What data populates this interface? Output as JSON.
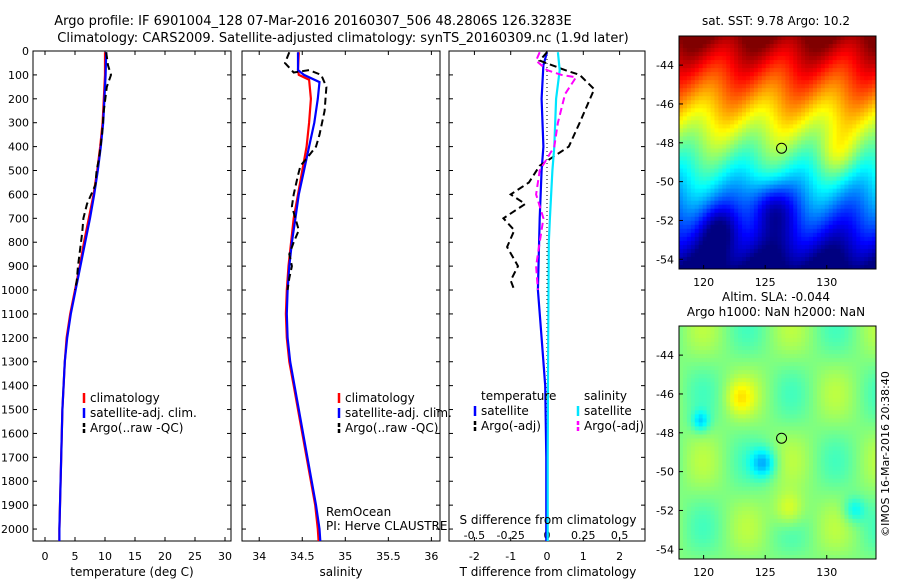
{
  "title": {
    "line1": "Argo profile: IF 6901004_128 07-Mar-2016 20160307_506 48.2806S 126.3283E",
    "line2": "Climatology: CARS2009. Satellite-adjusted climatology: synTS_20160309.nc (1.9d later)"
  },
  "colors": {
    "climatology": "#ff0000",
    "satellite": "#0000ff",
    "argo": "#000000",
    "salinity_satellite": "#00e5ff",
    "salinity_argo": "#ff00ff"
  },
  "credit": {
    "remocean": "RemOcean",
    "pi": "PI: Herve CLAUSTRE",
    "imos": "©IMOS 16-Mar-2016 20:38:40"
  },
  "chart_data": [
    {
      "id": "temperature",
      "type": "line",
      "xlabel": "temperature (deg C)",
      "ylabel": "",
      "xlim": [
        -2,
        31
      ],
      "ylim": [
        2050,
        0
      ],
      "x_ticks": [
        0,
        5,
        10,
        15,
        20,
        25,
        30
      ],
      "y_ticks": [
        0,
        100,
        200,
        300,
        400,
        500,
        600,
        700,
        800,
        900,
        1000,
        1100,
        1200,
        1300,
        1400,
        1500,
        1600,
        1700,
        1800,
        1900,
        2000
      ],
      "legend": [
        "climatology",
        "satellite-adj. clim.",
        "Argo(..raw -QC)"
      ],
      "series": [
        {
          "name": "climatology",
          "points": [
            [
              10.0,
              5
            ],
            [
              10.0,
              100
            ],
            [
              9.8,
              200
            ],
            [
              9.6,
              300
            ],
            [
              9.2,
              400
            ],
            [
              8.7,
              500
            ],
            [
              8.1,
              600
            ],
            [
              7.3,
              700
            ],
            [
              6.5,
              800
            ],
            [
              5.8,
              900
            ],
            [
              5.0,
              1000
            ],
            [
              4.2,
              1100
            ],
            [
              3.6,
              1200
            ],
            [
              3.3,
              1300
            ],
            [
              3.1,
              1400
            ],
            [
              2.9,
              1500
            ],
            [
              2.8,
              1600
            ],
            [
              2.7,
              1700
            ],
            [
              2.6,
              1800
            ],
            [
              2.5,
              1900
            ],
            [
              2.4,
              2000
            ],
            [
              2.4,
              2050
            ]
          ]
        },
        {
          "name": "satellite-adj. clim.",
          "points": [
            [
              10.2,
              5
            ],
            [
              10.1,
              100
            ],
            [
              9.9,
              200
            ],
            [
              9.7,
              300
            ],
            [
              9.3,
              400
            ],
            [
              8.8,
              500
            ],
            [
              8.2,
              600
            ],
            [
              7.5,
              700
            ],
            [
              6.7,
              800
            ],
            [
              5.9,
              900
            ],
            [
              5.1,
              1000
            ],
            [
              4.3,
              1100
            ],
            [
              3.7,
              1200
            ],
            [
              3.3,
              1300
            ],
            [
              3.1,
              1400
            ],
            [
              2.9,
              1500
            ],
            [
              2.8,
              1600
            ],
            [
              2.7,
              1700
            ],
            [
              2.6,
              1800
            ],
            [
              2.5,
              1900
            ],
            [
              2.4,
              2000
            ],
            [
              2.4,
              2050
            ]
          ]
        },
        {
          "name": "Argo(..raw -QC)",
          "points": [
            [
              10.2,
              5
            ],
            [
              10.5,
              60
            ],
            [
              11.0,
              100
            ],
            [
              10.3,
              150
            ],
            [
              9.8,
              250
            ],
            [
              9.5,
              350
            ],
            [
              9.0,
              450
            ],
            [
              8.6,
              500
            ],
            [
              8.4,
              560
            ],
            [
              7.0,
              640
            ],
            [
              6.4,
              700
            ],
            [
              6.2,
              760
            ],
            [
              5.9,
              820
            ],
            [
              5.5,
              900
            ],
            [
              5.3,
              960
            ],
            [
              5.0,
              1000
            ]
          ]
        }
      ]
    },
    {
      "id": "salinity",
      "type": "line",
      "xlabel": "salinity",
      "ylabel": "",
      "xlim": [
        33.8,
        36.1
      ],
      "ylim": [
        2050,
        0
      ],
      "x_ticks": [
        34,
        34.5,
        35,
        35.5,
        36
      ],
      "x_tick_labels": [
        "34",
        "34.5",
        "35",
        "35.5",
        "36"
      ],
      "legend": [
        "climatology",
        "satellite-adj. clim.",
        "Argo(..raw -QC)"
      ],
      "series": [
        {
          "name": "climatology",
          "points": [
            [
              34.46,
              5
            ],
            [
              34.45,
              80
            ],
            [
              34.46,
              100
            ],
            [
              34.58,
              120
            ],
            [
              34.6,
              200
            ],
            [
              34.58,
              300
            ],
            [
              34.55,
              400
            ],
            [
              34.5,
              500
            ],
            [
              34.45,
              600
            ],
            [
              34.4,
              700
            ],
            [
              34.37,
              800
            ],
            [
              34.34,
              900
            ],
            [
              34.32,
              1000
            ],
            [
              34.31,
              1100
            ],
            [
              34.32,
              1200
            ],
            [
              34.35,
              1300
            ],
            [
              34.4,
              1400
            ],
            [
              34.45,
              1500
            ],
            [
              34.5,
              1600
            ],
            [
              34.55,
              1700
            ],
            [
              34.6,
              1800
            ],
            [
              34.65,
              1900
            ],
            [
              34.68,
              2000
            ],
            [
              34.69,
              2050
            ]
          ]
        },
        {
          "name": "satellite-adj. clim.",
          "points": [
            [
              34.45,
              5
            ],
            [
              34.45,
              80
            ],
            [
              34.52,
              100
            ],
            [
              34.7,
              130
            ],
            [
              34.68,
              200
            ],
            [
              34.64,
              300
            ],
            [
              34.58,
              400
            ],
            [
              34.52,
              500
            ],
            [
              34.46,
              600
            ],
            [
              34.42,
              700
            ],
            [
              34.38,
              800
            ],
            [
              34.35,
              900
            ],
            [
              34.33,
              1000
            ],
            [
              34.32,
              1100
            ],
            [
              34.33,
              1200
            ],
            [
              34.36,
              1300
            ],
            [
              34.41,
              1400
            ],
            [
              34.46,
              1500
            ],
            [
              34.51,
              1600
            ],
            [
              34.56,
              1700
            ],
            [
              34.61,
              1800
            ],
            [
              34.66,
              1900
            ],
            [
              34.7,
              2000
            ],
            [
              34.71,
              2050
            ]
          ]
        },
        {
          "name": "Argo(..raw -QC)",
          "points": [
            [
              34.35,
              5
            ],
            [
              34.3,
              50
            ],
            [
              34.4,
              90
            ],
            [
              34.58,
              80
            ],
            [
              34.72,
              100
            ],
            [
              34.78,
              150
            ],
            [
              34.76,
              250
            ],
            [
              34.7,
              350
            ],
            [
              34.66,
              400
            ],
            [
              34.55,
              450
            ],
            [
              34.48,
              480
            ],
            [
              34.45,
              520
            ],
            [
              34.4,
              600
            ],
            [
              34.38,
              650
            ],
            [
              34.42,
              700
            ],
            [
              34.46,
              750
            ],
            [
              34.4,
              800
            ],
            [
              34.35,
              850
            ],
            [
              34.38,
              900
            ],
            [
              34.35,
              950
            ],
            [
              34.33,
              1000
            ]
          ]
        }
      ]
    },
    {
      "id": "difference",
      "type": "line",
      "xlabel": "T difference from climatology",
      "x2label": "S difference from climatology",
      "xlim": [
        -2.7,
        2.7
      ],
      "ylim": [
        2050,
        0
      ],
      "x_ticks": [
        -2,
        -1,
        0,
        1,
        2
      ],
      "x2_ticks": [
        -0.5,
        -0.25,
        0,
        0.25,
        0.5
      ],
      "x2_tick_labels": [
        "-0.5",
        "-0.25",
        "0",
        "0.25",
        "0.5"
      ],
      "legend_headers": [
        "temperature",
        "salinity"
      ],
      "legend": [
        "satellite",
        "Argo(-adj)",
        "satellite",
        "Argo(-adj)"
      ],
      "series": [
        {
          "name": "satellite",
          "group": "temperature",
          "color": "#0000ff",
          "style": "solid",
          "points": [
            [
              0.0,
              5
            ],
            [
              -0.1,
              60
            ],
            [
              -0.15,
              200
            ],
            [
              -0.1,
              400
            ],
            [
              -0.15,
              500
            ],
            [
              -0.2,
              700
            ],
            [
              -0.25,
              1000
            ],
            [
              -0.15,
              1200
            ],
            [
              -0.05,
              1400
            ],
            [
              -0.02,
              1700
            ],
            [
              -0.02,
              2050
            ]
          ]
        },
        {
          "name": "Argo(-adj)",
          "group": "temperature",
          "color": "#000000",
          "style": "dash",
          "points": [
            [
              0.0,
              5
            ],
            [
              -0.2,
              40
            ],
            [
              0.5,
              80
            ],
            [
              0.9,
              100
            ],
            [
              1.3,
              160
            ],
            [
              0.9,
              300
            ],
            [
              0.6,
              400
            ],
            [
              -0.2,
              480
            ],
            [
              -0.5,
              550
            ],
            [
              -1.0,
              600
            ],
            [
              -0.6,
              640
            ],
            [
              -1.2,
              700
            ],
            [
              -0.9,
              750
            ],
            [
              -1.1,
              820
            ],
            [
              -0.8,
              900
            ],
            [
              -1.0,
              960
            ],
            [
              -0.9,
              1000
            ]
          ]
        },
        {
          "name": "satellite",
          "group": "salinity",
          "color": "#00e5ff",
          "style": "solid",
          "points": [
            [
              0.3,
              5
            ],
            [
              0.35,
              80
            ],
            [
              0.25,
              200
            ],
            [
              0.2,
              400
            ],
            [
              0.15,
              500
            ],
            [
              0.08,
              700
            ],
            [
              0.05,
              800
            ],
            [
              0.04,
              1000
            ],
            [
              0.03,
              1300
            ],
            [
              0.02,
              1700
            ],
            [
              0.02,
              2050
            ]
          ]
        },
        {
          "name": "Argo(-adj)",
          "group": "salinity",
          "color": "#ff00ff",
          "style": "dash",
          "points": [
            [
              -0.2,
              5
            ],
            [
              -0.3,
              40
            ],
            [
              0.0,
              80
            ],
            [
              0.4,
              100
            ],
            [
              0.8,
              110
            ],
            [
              0.5,
              180
            ],
            [
              0.3,
              300
            ],
            [
              0.2,
              400
            ],
            [
              -0.2,
              500
            ],
            [
              -0.3,
              600
            ],
            [
              -0.1,
              700
            ],
            [
              -0.2,
              800
            ],
            [
              -0.3,
              900
            ],
            [
              -0.25,
              1000
            ]
          ]
        }
      ]
    },
    {
      "id": "sst_map",
      "type": "heatmap",
      "title": "sat. SST: 9.78 Argo: 10.2",
      "xlim": [
        118,
        134
      ],
      "ylim": [
        -54.5,
        -42.5
      ],
      "x_ticks": [
        120,
        125,
        130
      ],
      "y_ticks": [
        -44,
        -46,
        -48,
        -50,
        -52,
        -54
      ],
      "marker": [
        126.33,
        -48.28
      ]
    },
    {
      "id": "sla_map",
      "type": "heatmap",
      "title": "Altim. SLA: -0.044",
      "subtitle": "Argo h1000: NaN h2000: NaN",
      "xlim": [
        118,
        134
      ],
      "ylim": [
        -54.5,
        -42.5
      ],
      "x_ticks": [
        120,
        125,
        130
      ],
      "y_ticks": [
        -44,
        -46,
        -48,
        -50,
        -52,
        -54
      ],
      "marker": [
        126.33,
        -48.28
      ]
    }
  ]
}
